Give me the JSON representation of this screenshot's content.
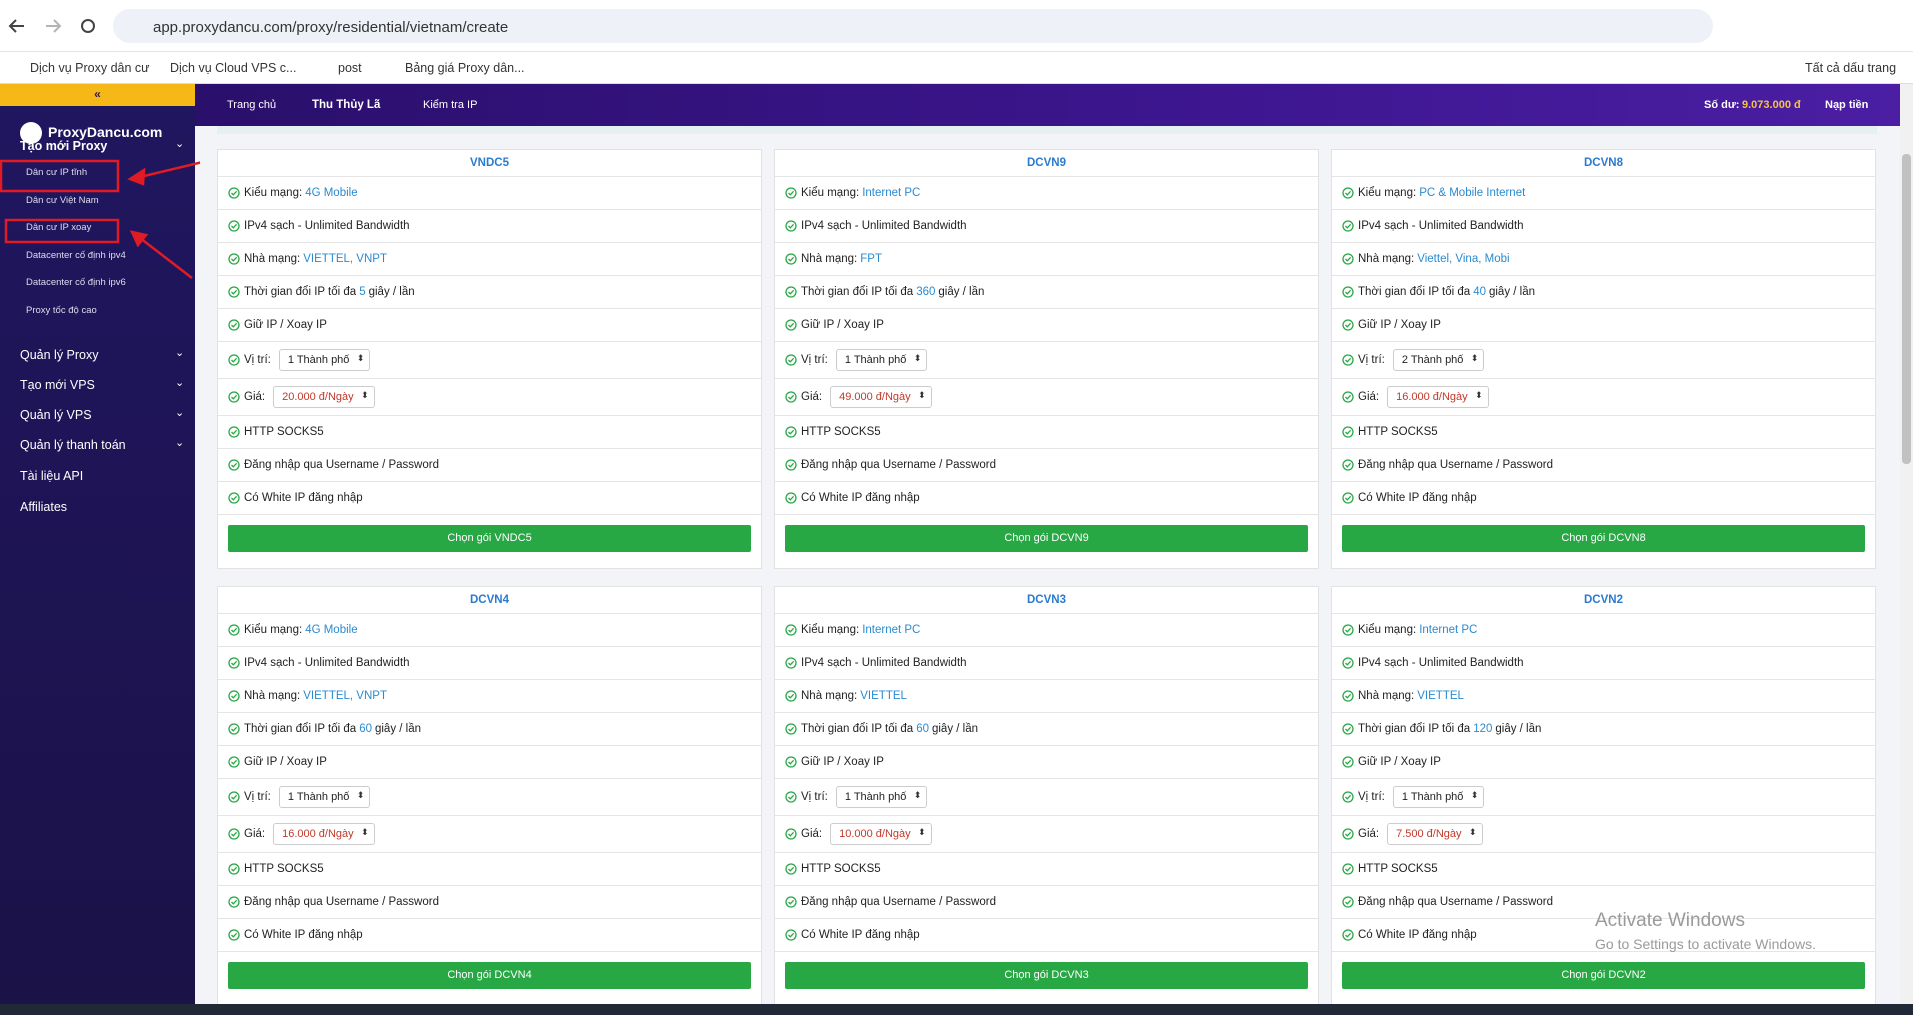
{
  "browser": {
    "url": "app.proxydancu.com/proxy/residential/vietnam/create",
    "bookmarks": [
      "Dịch vụ Proxy dân cư",
      "Dịch vụ Cloud VPS c...",
      "post",
      "Bảng giá Proxy dân..."
    ],
    "all_bookmarks": "Tất cả dấu trang"
  },
  "sidebar": {
    "logo": "ProxyDancu.com",
    "menu": [
      {
        "label": "Tạo mới Proxy",
        "children": [
          "Dân cư IP tĩnh",
          "Dân cư Việt Nam",
          "Dân cư IP xoay",
          "Datacenter cố định ipv4",
          "Datacenter cố định ipv6",
          "Proxy tốc độ cao"
        ]
      },
      {
        "label": "Quản lý Proxy"
      },
      {
        "label": "Tạo mới VPS"
      },
      {
        "label": "Quản lý VPS"
      },
      {
        "label": "Quản lý thanh toán"
      },
      {
        "label": "Tài liệu API"
      },
      {
        "label": "Affiliates"
      }
    ]
  },
  "topnav": {
    "home": "Trang chủ",
    "user": "Thu Thủy Lã",
    "check_ip": "Kiểm tra IP",
    "balance_label": "Số dư:",
    "balance": "9.073.000 đ",
    "topup": "Nạp tiền"
  },
  "cards": [
    {
      "title": "VNDC5",
      "network_type": {
        "label": "Kiểu mạng:",
        "value": "4G Mobile"
      },
      "ipv4": "IPv4 sạch - Unlimited Bandwidth",
      "carrier": {
        "label": "Nhà mạng:",
        "value": "VIETTEL, VNPT"
      },
      "rotation": {
        "prefix": "Thời gian đổi IP tối đa",
        "seconds": 5,
        "suffix": "giây / lần"
      },
      "keep": "Giữ IP / Xoay IP",
      "location": {
        "label": "Vị trí:",
        "value": "1 Thành phố"
      },
      "price": {
        "label": "Giá:",
        "value": "20.000 đ/Ngày"
      },
      "protocol": "HTTP SOCKS5",
      "login": "Đăng nhập qua Username / Password",
      "whitelist": "Có White IP đăng nhập",
      "button": "Chọn gói VNDC5"
    },
    {
      "title": "DCVN9",
      "network_type": {
        "label": "Kiểu mạng:",
        "value": "Internet PC"
      },
      "ipv4": "IPv4 sạch - Unlimited Bandwidth",
      "carrier": {
        "label": "Nhà mạng:",
        "value": "FPT"
      },
      "rotation": {
        "prefix": "Thời gian đổi IP tối đa",
        "seconds": 360,
        "suffix": "giây / lần"
      },
      "keep": "Giữ IP / Xoay IP",
      "location": {
        "label": "Vị trí:",
        "value": "1 Thành phố"
      },
      "price": {
        "label": "Giá:",
        "value": "49.000 đ/Ngày"
      },
      "protocol": "HTTP SOCKS5",
      "login": "Đăng nhập qua Username / Password",
      "whitelist": "Có White IP đăng nhập",
      "button": "Chọn gói DCVN9"
    },
    {
      "title": "DCVN8",
      "network_type": {
        "label": "Kiểu mạng:",
        "value": "PC & Mobile Internet"
      },
      "ipv4": "IPv4 sạch - Unlimited Bandwidth",
      "carrier": {
        "label": "Nhà mạng:",
        "value": "Viettel, Vina, Mobi"
      },
      "rotation": {
        "prefix": "Thời gian đổi IP tối đa",
        "seconds": 40,
        "suffix": "giây / lần"
      },
      "keep": "Giữ IP / Xoay IP",
      "location": {
        "label": "Vị trí:",
        "value": "2 Thành phố"
      },
      "price": {
        "label": "Giá:",
        "value": "16.000 đ/Ngày"
      },
      "protocol": "HTTP SOCKS5",
      "login": "Đăng nhập qua Username / Password",
      "whitelist": "Có White IP đăng nhập",
      "button": "Chọn gói DCVN8"
    },
    {
      "title": "DCVN4",
      "network_type": {
        "label": "Kiểu mạng:",
        "value": "4G Mobile"
      },
      "ipv4": "IPv4 sạch - Unlimited Bandwidth",
      "carrier": {
        "label": "Nhà mạng:",
        "value": "VIETTEL, VNPT"
      },
      "rotation": {
        "prefix": "Thời gian đổi IP tối đa",
        "seconds": 60,
        "suffix": "giây / lần"
      },
      "keep": "Giữ IP / Xoay IP",
      "location": {
        "label": "Vị trí:",
        "value": "1 Thành phố"
      },
      "price": {
        "label": "Giá:",
        "value": "16.000 đ/Ngày"
      },
      "protocol": "HTTP SOCKS5",
      "login": "Đăng nhập qua Username / Password",
      "whitelist": "Có White IP đăng nhập",
      "button": "Chọn gói DCVN4"
    },
    {
      "title": "DCVN3",
      "network_type": {
        "label": "Kiểu mạng:",
        "value": "Internet PC"
      },
      "ipv4": "IPv4 sạch - Unlimited Bandwidth",
      "carrier": {
        "label": "Nhà mạng:",
        "value": "VIETTEL"
      },
      "rotation": {
        "prefix": "Thời gian đổi IP tối đa",
        "seconds": 60,
        "suffix": "giây / lần"
      },
      "keep": "Giữ IP / Xoay IP",
      "location": {
        "label": "Vị trí:",
        "value": "1 Thành phố"
      },
      "price": {
        "label": "Giá:",
        "value": "10.000 đ/Ngày"
      },
      "protocol": "HTTP SOCKS5",
      "login": "Đăng nhập qua Username / Password",
      "whitelist": "Có White IP đăng nhập",
      "button": "Chọn gói DCVN3"
    },
    {
      "title": "DCVN2",
      "network_type": {
        "label": "Kiểu mạng:",
        "value": "Internet PC"
      },
      "ipv4": "IPv4 sạch - Unlimited Bandwidth",
      "carrier": {
        "label": "Nhà mạng:",
        "value": "VIETTEL"
      },
      "rotation": {
        "prefix": "Thời gian đổi IP tối đa",
        "seconds": 120,
        "suffix": "giây / lần"
      },
      "keep": "Giữ IP / Xoay IP",
      "location": {
        "label": "Vị trí:",
        "value": "1 Thành phố"
      },
      "price": {
        "label": "Giá:",
        "value": "7.500 đ/Ngày"
      },
      "protocol": "HTTP SOCKS5",
      "login": "Đăng nhập qua Username / Password",
      "whitelist": "Có White IP đăng nhập",
      "button": "Chọn gói DCVN2"
    }
  ],
  "watermark": {
    "title": "Activate Windows",
    "subtitle": "Go to Settings to activate Windows."
  }
}
